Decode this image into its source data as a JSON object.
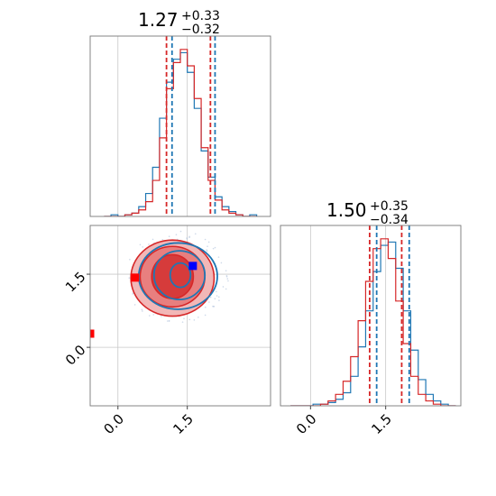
{
  "colors": {
    "blue": "#1f77b4",
    "red": "#d62728",
    "red_fill_outer": "#f2b7b7",
    "red_fill_mid": "#e87f7f",
    "red_fill_inner": "#d63b3b",
    "marker_blue": "#0000ff",
    "marker_red": "#ff0000"
  },
  "chart_data": {
    "type": "corner",
    "parameters": [
      {
        "title": {
          "value": "1.27",
          "upper": "+0.33",
          "lower": "−0.32"
        },
        "range": [
          -0.6,
          3.3
        ],
        "ticks": [
          0.0,
          1.5
        ],
        "tick_labels": [
          "0.0",
          "1.5"
        ],
        "quantile_lines": {
          "red": [
            1.05,
            2.0
          ],
          "blue": [
            1.17,
            2.1
          ]
        },
        "histogram": {
          "bins": [
            -0.3,
            -0.15,
            0.0,
            0.15,
            0.3,
            0.45,
            0.6,
            0.75,
            0.9,
            1.05,
            1.2,
            1.35,
            1.5,
            1.65,
            1.8,
            1.95,
            2.1,
            2.25,
            2.4,
            2.55,
            2.7,
            2.85,
            3.0
          ],
          "series": [
            {
              "name": "blue",
              "values": [
                0,
                1,
                0,
                1,
                2,
                6,
                14,
                30,
                60,
                82,
                96,
                100,
                88,
                66,
                40,
                24,
                12,
                6,
                3,
                1,
                0,
                1
              ]
            },
            {
              "name": "red",
              "values": [
                0,
                0,
                0,
                1,
                2,
                4,
                9,
                22,
                48,
                78,
                94,
                102,
                92,
                72,
                42,
                22,
                10,
                4,
                2,
                1,
                0,
                0
              ]
            }
          ]
        }
      },
      {
        "title": {
          "value": "1.50",
          "upper": "+0.35",
          "lower": "−0.34"
        },
        "range": [
          -0.6,
          3.0
        ],
        "ticks": [
          0.0,
          1.5
        ],
        "tick_labels": [
          "0.0",
          "1.5"
        ],
        "quantile_lines": {
          "red": [
            1.18,
            1.82
          ],
          "blue": [
            1.32,
            1.97
          ]
        },
        "histogram": {
          "bins": [
            -0.4,
            -0.25,
            -0.1,
            0.05,
            0.2,
            0.35,
            0.5,
            0.65,
            0.8,
            0.95,
            1.1,
            1.25,
            1.4,
            1.55,
            1.7,
            1.85,
            2.0,
            2.15,
            2.3,
            2.45,
            2.6,
            2.75,
            2.9
          ],
          "series": [
            {
              "name": "blue",
              "values": [
                0,
                0,
                0,
                1,
                1,
                2,
                4,
                8,
                18,
                36,
                58,
                82,
                98,
                100,
                84,
                58,
                34,
                16,
                7,
                3,
                1,
                0
              ]
            },
            {
              "name": "red",
              "values": [
                0,
                0,
                0,
                0,
                1,
                3,
                7,
                15,
                30,
                52,
                76,
                96,
                102,
                90,
                64,
                38,
                18,
                7,
                3,
                1,
                0,
                0
              ]
            }
          ]
        }
      }
    ],
    "joint": {
      "x_range": [
        -0.6,
        3.3
      ],
      "y_range": [
        -1.2,
        2.5
      ],
      "blue_contours": [
        {
          "cx": 1.35,
          "cy": 1.48,
          "rx": 0.22,
          "ry": 0.25
        },
        {
          "cx": 1.33,
          "cy": 1.48,
          "rx": 0.55,
          "ry": 0.5
        },
        {
          "cx": 1.3,
          "cy": 1.46,
          "rx": 0.85,
          "ry": 0.68
        }
      ],
      "red_contours": [
        {
          "cx": 1.18,
          "cy": 1.45,
          "rx": 0.45,
          "ry": 0.45
        },
        {
          "cx": 1.18,
          "cy": 1.45,
          "rx": 0.7,
          "ry": 0.62
        },
        {
          "cx": 1.18,
          "cy": 1.42,
          "rx": 0.9,
          "ry": 0.78
        }
      ],
      "markers": [
        {
          "color": "blue",
          "x": 1.62,
          "y": 1.67
        },
        {
          "color": "red",
          "x": 0.37,
          "y": 1.43
        },
        {
          "color": "red",
          "x": -0.6,
          "y": 0.28
        }
      ]
    }
  }
}
